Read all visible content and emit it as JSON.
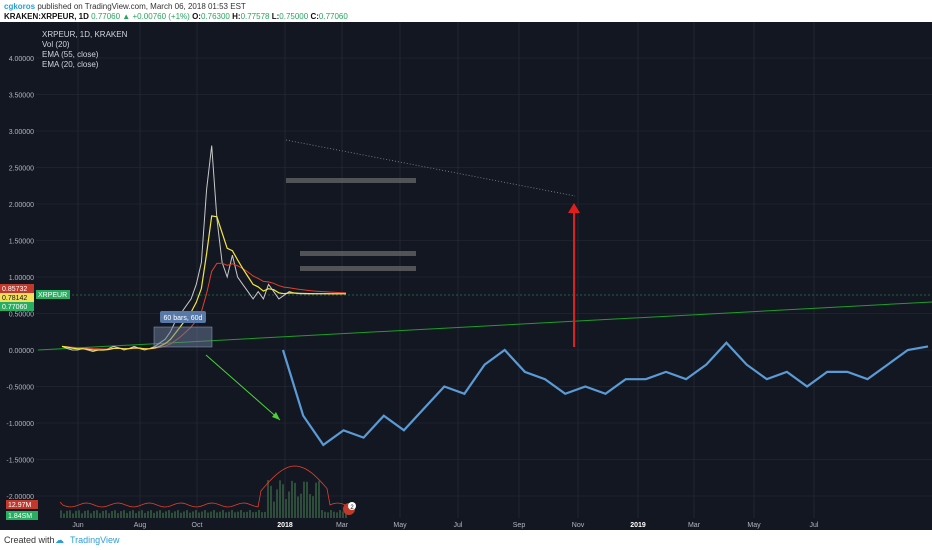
{
  "header": {
    "user": "cgkoros",
    "published_text": "published on TradingView.com, March 06, 2018 01:53 EST",
    "symbol": "KRAKEN:XRPEUR, 1D",
    "last": "0.77060",
    "change": "+0.00760 (+1%)",
    "open_label": "O:",
    "open": "0.76300",
    "high_label": "H:",
    "high": "0.77578",
    "low_label": "L:",
    "low": "0.75000",
    "close_label": "C:",
    "close": "0.77060"
  },
  "legend": {
    "title": "XRPEUR, 1D, KRAKEN",
    "items": [
      "Vol (20)",
      "EMA (55, close)",
      "EMA (20, close)"
    ]
  },
  "footer": {
    "created_with": "Created with",
    "brand": "TradingView"
  },
  "colors": {
    "background": "#131722",
    "grid": "#2a2e39",
    "price": "#c8c8c8",
    "projection": "#5b9bd5",
    "ema20": "#f5e642",
    "ema55": "#e0402c",
    "trend": "#1e9e2a",
    "arrow_green": "#4cd137",
    "arrow_red": "#e01e1e",
    "volume": "#2e4d3a",
    "vol_ma": "#e0402c",
    "box": "#6e6e6e"
  },
  "price_badges": [
    {
      "text": "0.85732",
      "color": "#c0392b"
    },
    {
      "text": "0.78142",
      "color": "#f1e05a"
    },
    {
      "text": "0.77060",
      "color": "#27ae60"
    }
  ],
  "symbol_badge": "XRPEUR",
  "vol_badges": [
    {
      "text": "12.97M",
      "color": "#c0392b"
    },
    {
      "text": "1.84SM",
      "color": "#27ae60"
    }
  ],
  "measure_label": "60 bars, 60d",
  "event_badge": "2",
  "chart_data": {
    "type": "line",
    "title": "XRPEUR, 1D, KRAKEN",
    "y_ticks": [
      "4.00000",
      "3.50000",
      "3.00000",
      "2.50000",
      "2.00000",
      "1.50000",
      "1.00000",
      "0.50000",
      "0.00000",
      "-0.50000",
      "-1.00000",
      "-1.50000",
      "-2.00000"
    ],
    "x_ticks": [
      "Jun",
      "Aug",
      "Oct",
      "2018",
      "Mar",
      "May",
      "Jul",
      "Sep",
      "Nov",
      "2019",
      "Mar",
      "May",
      "Jul"
    ],
    "ylim": [
      -2.2,
      4.3
    ],
    "grid": true,
    "series": [
      {
        "x": [
          0,
          6,
          12,
          18,
          24,
          30,
          36,
          42,
          48,
          54,
          60,
          66,
          72,
          78,
          84,
          90,
          96,
          102,
          108,
          114,
          120,
          126,
          132,
          138,
          144,
          150,
          156,
          162,
          168,
          174,
          180,
          186,
          192,
          198,
          204,
          210,
          216,
          222,
          228,
          234,
          240,
          246,
          252,
          258,
          264,
          270,
          276,
          282,
          288,
          294,
          300,
          306,
          312,
          318,
          324,
          330
        ],
        "values": [
          0.05,
          0.02,
          0.0,
          0.0,
          0.02,
          0.0,
          -0.02,
          0.0,
          0.0,
          0.02,
          0.05,
          0.03,
          0.0,
          0.02,
          0.05,
          0.02,
          0.0,
          0.02,
          0.05,
          0.1,
          0.15,
          0.25,
          0.4,
          0.5,
          0.6,
          0.7,
          0.9,
          1.2,
          2.2,
          2.8,
          1.8,
          1.2,
          1.0,
          1.3,
          1.0,
          0.9,
          0.8,
          0.7,
          0.8,
          0.7,
          0.9,
          0.8,
          0.7,
          0.75,
          0.8,
          0.78,
          0.77,
          0.77,
          0.77,
          0.77,
          0.77,
          0.77,
          0.77,
          0.77,
          0.77,
          0.77
        ]
      },
      {
        "x": [
          0,
          20,
          40,
          60,
          80,
          100,
          120,
          140,
          160,
          180,
          200,
          220,
          240,
          260,
          280,
          300,
          320,
          340,
          360,
          380,
          400,
          420,
          440,
          460,
          480,
          500,
          520,
          540,
          560,
          580,
          600,
          620,
          640
        ],
        "values": [
          0.0,
          -0.9,
          -1.3,
          -1.1,
          -1.2,
          -0.9,
          -1.1,
          -0.8,
          -0.5,
          -0.6,
          -0.2,
          0.0,
          -0.3,
          -0.4,
          -0.6,
          -0.5,
          -0.6,
          -0.4,
          -0.4,
          -0.3,
          -0.4,
          -0.2,
          0.1,
          -0.2,
          -0.4,
          -0.3,
          -0.5,
          -0.3,
          -0.3,
          -0.4,
          -0.2,
          0.0,
          0.05
        ]
      }
    ]
  }
}
